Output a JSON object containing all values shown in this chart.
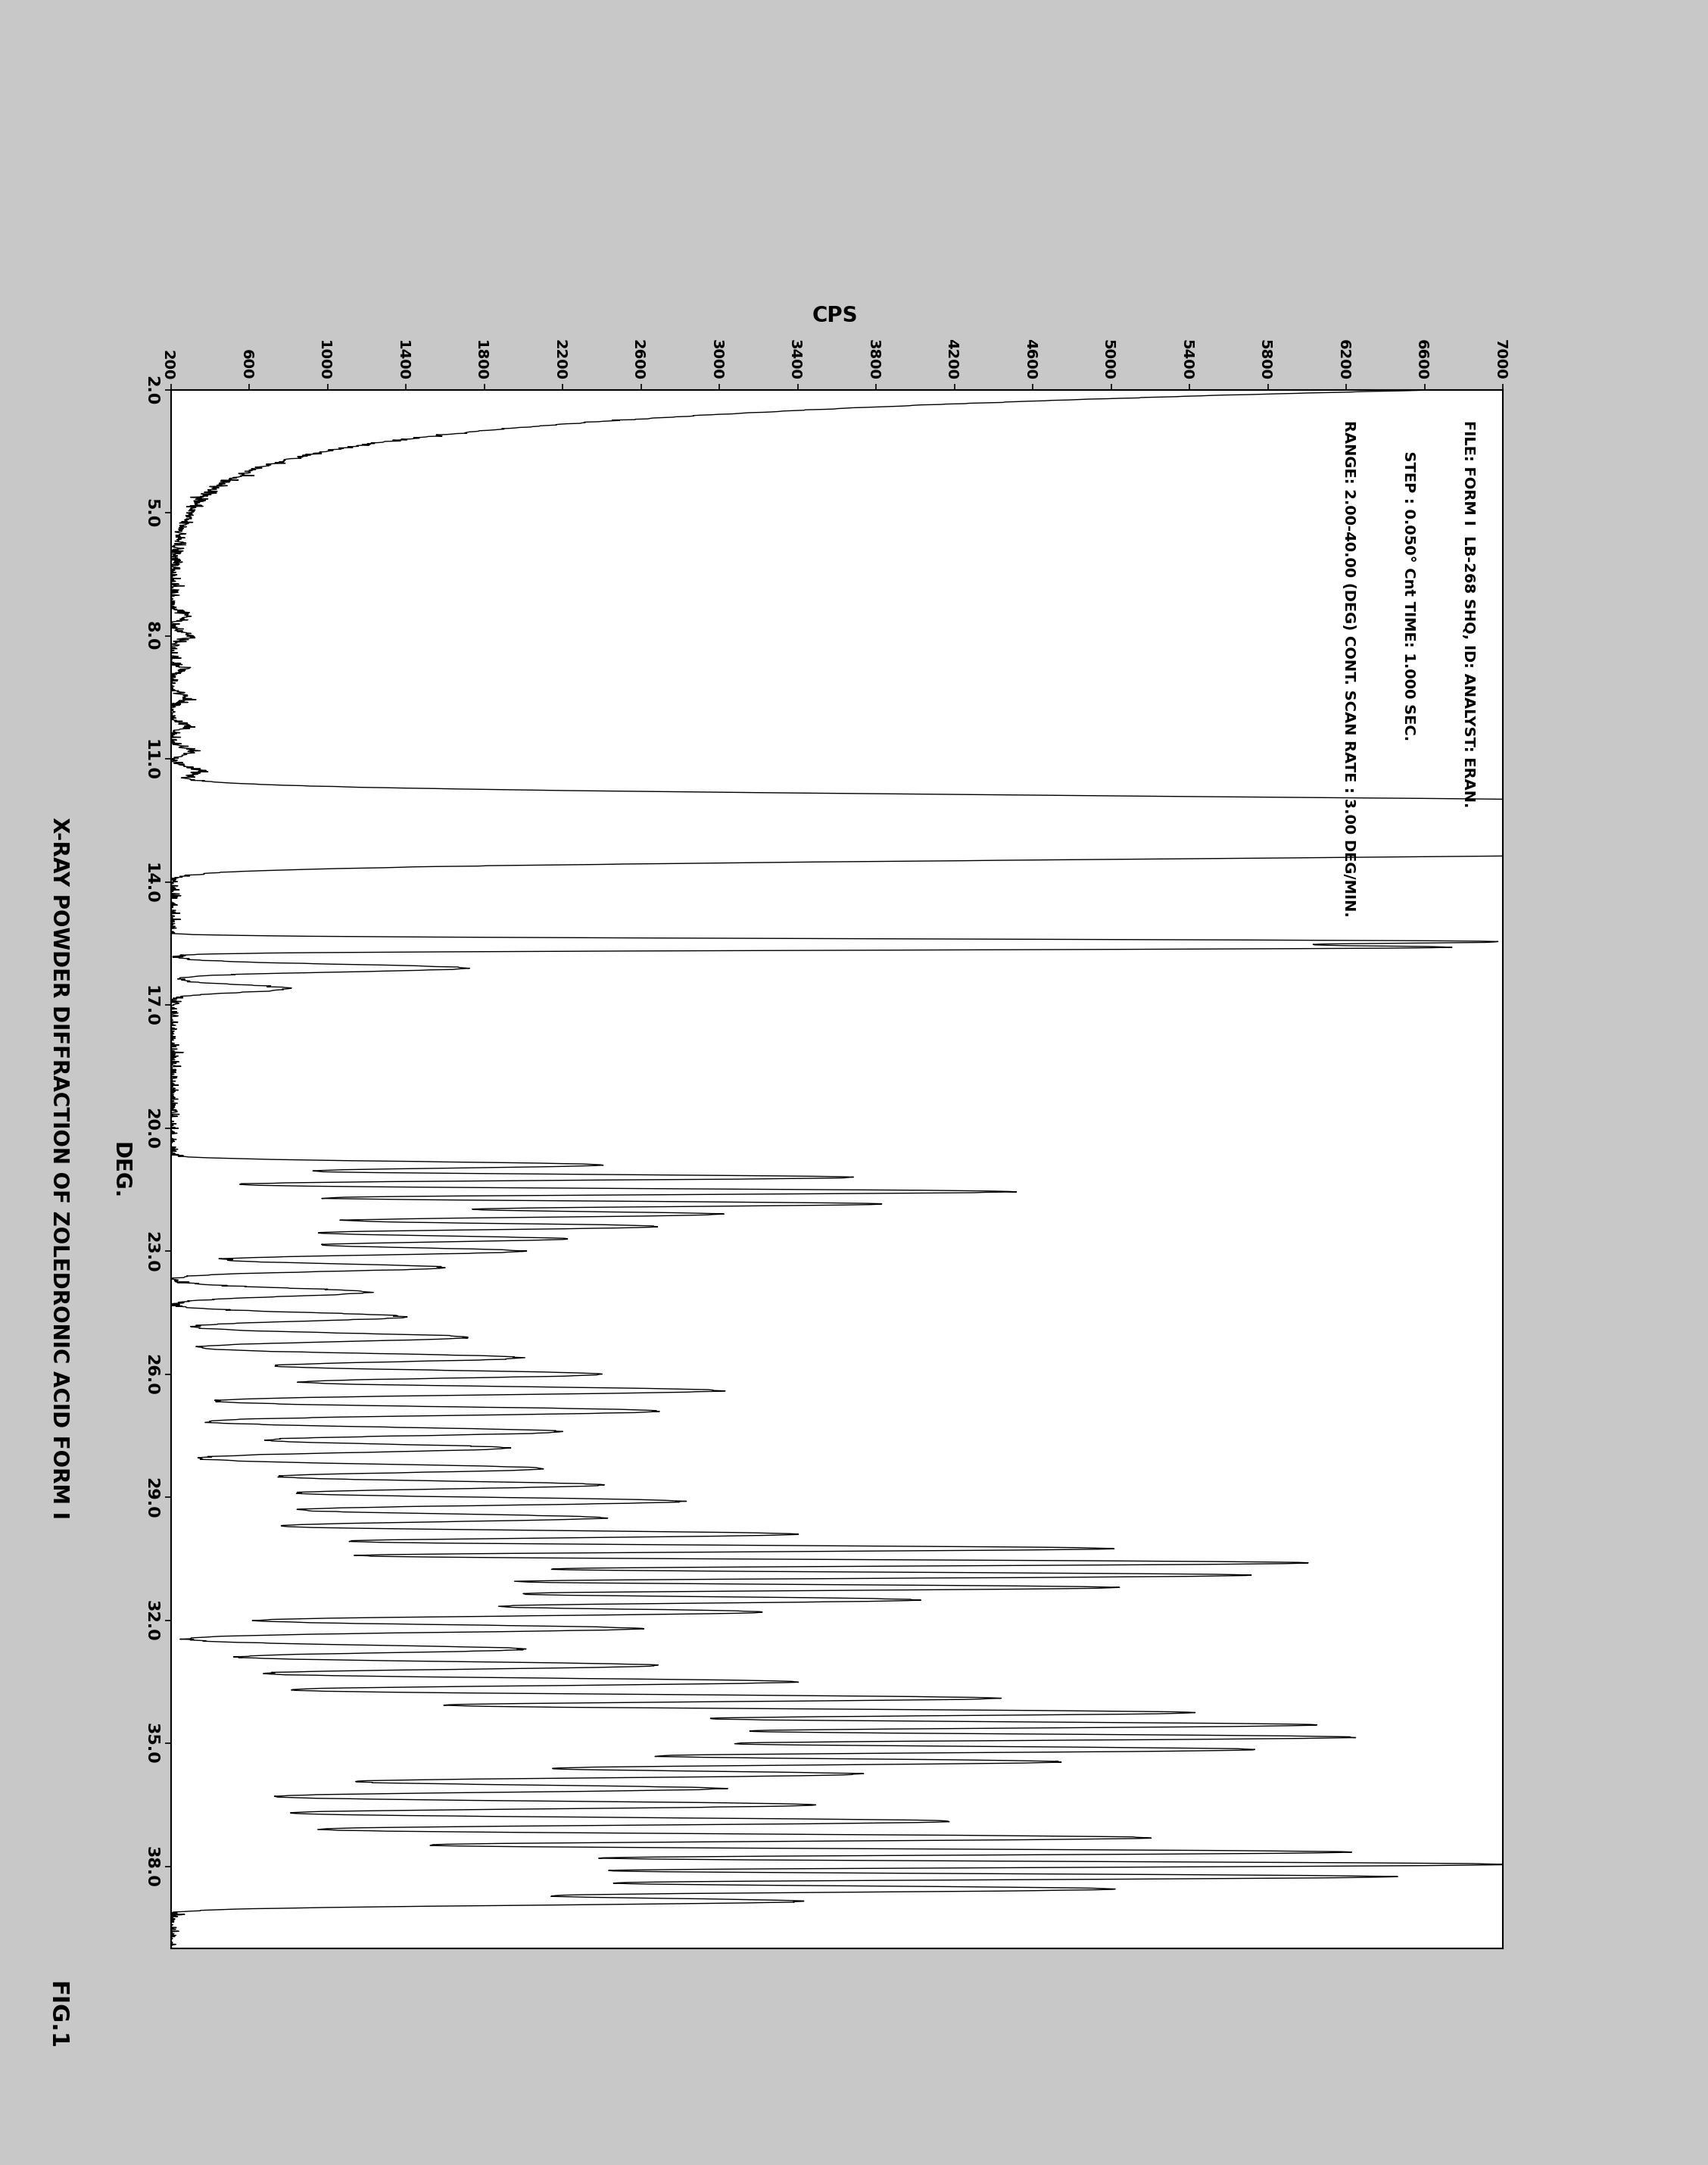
{
  "title": "X-RAY POWDER DIFFRACTION OF ZOLEDRONIC ACID FORM I",
  "xlabel": "DEG.",
  "ylabel": "CPS",
  "fig_label": "FIG.1",
  "annotation_lines": [
    "FILE: FORM I  LB-268 SHQ, ID: ANALYST: ERAN.",
    "      STEP : 0.050° Cnt TIME: 1.000 SEC.",
    "RANGE: 2.00-40.00 (DEG) CONT. SCAN RATE : 3.00 DEG/MIN."
  ],
  "xmin": 2.0,
  "xmax": 40.0,
  "xticks": [
    2.0,
    5.0,
    8.0,
    11.0,
    14.0,
    17.0,
    20.0,
    23.0,
    26.0,
    29.0,
    32.0,
    35.0,
    38.0
  ],
  "ymin": 200,
  "ymax": 7000,
  "yticks": [
    200,
    600,
    1000,
    1400,
    1800,
    2200,
    2600,
    3000,
    3400,
    3800,
    4200,
    4600,
    5000,
    5400,
    5800,
    6200,
    6600,
    7000
  ],
  "background_color": "#ffffff",
  "line_color": "#000000",
  "figure_bg": "#c8c8c8"
}
